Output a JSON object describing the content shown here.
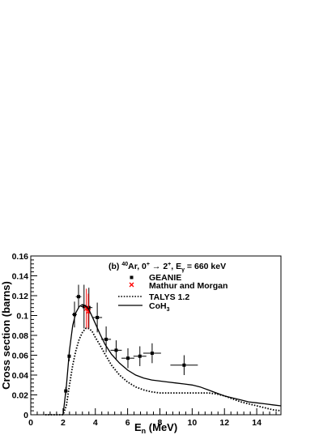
{
  "chart_data": {
    "type": "line",
    "annotation": {
      "prefix": "(b) ",
      "mass_number": "40",
      "element_transition": "Ar, 0",
      "plus1": "+",
      "arrow": " → 2",
      "plus2": "+",
      "egamma_E": ", E",
      "egamma_sub": "γ",
      "egamma_value": " = 660 keV"
    },
    "xlabel": {
      "main": "E",
      "sub": "n",
      "unit": " (MeV)"
    },
    "ylabel": "Cross section (barns)",
    "xlim": [
      0,
      15.5
    ],
    "ylim": [
      0,
      0.16
    ],
    "x_ticks": [
      0,
      2,
      4,
      6,
      8,
      10,
      12,
      14
    ],
    "x_tick_labels": [
      "0",
      "2",
      "4",
      "6",
      "8",
      "10",
      "12",
      "14"
    ],
    "y_ticks": [
      0,
      0.02,
      0.04,
      0.06,
      0.08,
      0.1,
      0.12,
      0.14,
      0.16
    ],
    "y_tick_labels": [
      "0",
      "0.02",
      "0.04",
      "0.06",
      "0.08",
      "0.1",
      "0.12",
      "0.14",
      "0.16"
    ],
    "grid": false,
    "legend_position": "top-right",
    "legend": [
      {
        "label": "GEANIE",
        "style": "marker-square"
      },
      {
        "label": "Mathur and Morgan",
        "style": "marker-cross-red"
      },
      {
        "label": "TALYS 1.2",
        "style": "dotted"
      },
      {
        "label_main": "CoH",
        "label_sub": "3",
        "style": "solid"
      }
    ],
    "series": [
      {
        "name": "GEANIE",
        "kind": "points",
        "color": "#000000",
        "points": [
          {
            "x": 2.17,
            "y": 0.024,
            "xerr": 0.05,
            "yerr": 0.004
          },
          {
            "x": 2.38,
            "y": 0.059,
            "xerr": 0.07,
            "yerr": 0.005
          },
          {
            "x": 2.71,
            "y": 0.101,
            "xerr": 0.15,
            "yerr": 0.013
          },
          {
            "x": 2.96,
            "y": 0.119,
            "xerr": 0.17,
            "yerr": 0.012
          },
          {
            "x": 3.3,
            "y": 0.109,
            "xerr": 0.2,
            "yerr": 0.022
          },
          {
            "x": 3.6,
            "y": 0.108,
            "xerr": 0.22,
            "yerr": 0.02
          },
          {
            "x": 4.12,
            "y": 0.098,
            "xerr": 0.3,
            "yerr": 0.015
          },
          {
            "x": 4.67,
            "y": 0.076,
            "xerr": 0.3,
            "yerr": 0.013
          },
          {
            "x": 5.29,
            "y": 0.065,
            "xerr": 0.35,
            "yerr": 0.01
          },
          {
            "x": 6.02,
            "y": 0.057,
            "xerr": 0.4,
            "yerr": 0.01
          },
          {
            "x": 6.76,
            "y": 0.059,
            "xerr": 0.4,
            "yerr": 0.01
          },
          {
            "x": 7.52,
            "y": 0.062,
            "xerr": 0.55,
            "yerr": 0.01
          },
          {
            "x": 9.5,
            "y": 0.05,
            "xerr": 0.85,
            "yerr": 0.01
          }
        ]
      },
      {
        "name": "Mathur and Morgan",
        "kind": "points",
        "color": "#ff0000",
        "points": [
          {
            "x": 3.45,
            "y": 0.107,
            "xerr": 0.0,
            "yerr": 0.02
          },
          {
            "x": 3.57,
            "y": 0.104,
            "xerr": 0.0,
            "yerr": 0.018
          }
        ]
      },
      {
        "name": "TALYS 1.2",
        "kind": "line",
        "dash": "dotted",
        "color": "#000000",
        "x": [
          0.9,
          2.0,
          2.2,
          2.4,
          2.6,
          2.8,
          3.0,
          3.2,
          3.4,
          3.6,
          3.8,
          4.0,
          4.3,
          4.6,
          5.0,
          5.5,
          6.0,
          6.5,
          7.0,
          7.5,
          8.0,
          8.5,
          9.0,
          9.5,
          10.0,
          10.5,
          11.0,
          11.5,
          12.0,
          12.5,
          13.0,
          13.5,
          14.0,
          14.5,
          15.0,
          15.5
        ],
        "y": [
          0.0,
          0.0,
          0.009,
          0.03,
          0.05,
          0.065,
          0.076,
          0.083,
          0.087,
          0.087,
          0.084,
          0.078,
          0.07,
          0.061,
          0.05,
          0.04,
          0.033,
          0.028,
          0.025,
          0.023,
          0.022,
          0.022,
          0.022,
          0.022,
          0.022,
          0.022,
          0.022,
          0.021,
          0.019,
          0.016,
          0.013,
          0.011,
          0.009,
          0.007,
          0.005,
          0.004
        ]
      },
      {
        "name": "CoH3",
        "kind": "line",
        "dash": "solid",
        "color": "#000000",
        "x": [
          2.0,
          2.2,
          2.4,
          2.6,
          2.8,
          3.0,
          3.2,
          3.4,
          3.6,
          3.8,
          4.0,
          4.3,
          4.6,
          5.0,
          5.5,
          6.0,
          6.5,
          7.0,
          7.5,
          8.0,
          8.5,
          9.0,
          9.5,
          10.0,
          10.5,
          11.0,
          11.5,
          12.0,
          12.5,
          13.0,
          13.5,
          14.0,
          14.5,
          15.0,
          15.5
        ],
        "y": [
          0.0,
          0.028,
          0.065,
          0.09,
          0.103,
          0.109,
          0.111,
          0.11,
          0.106,
          0.099,
          0.092,
          0.081,
          0.071,
          0.061,
          0.052,
          0.045,
          0.04,
          0.037,
          0.035,
          0.034,
          0.033,
          0.032,
          0.031,
          0.03,
          0.028,
          0.025,
          0.022,
          0.019,
          0.017,
          0.015,
          0.013,
          0.012,
          0.011,
          0.01,
          0.009
        ]
      }
    ]
  }
}
